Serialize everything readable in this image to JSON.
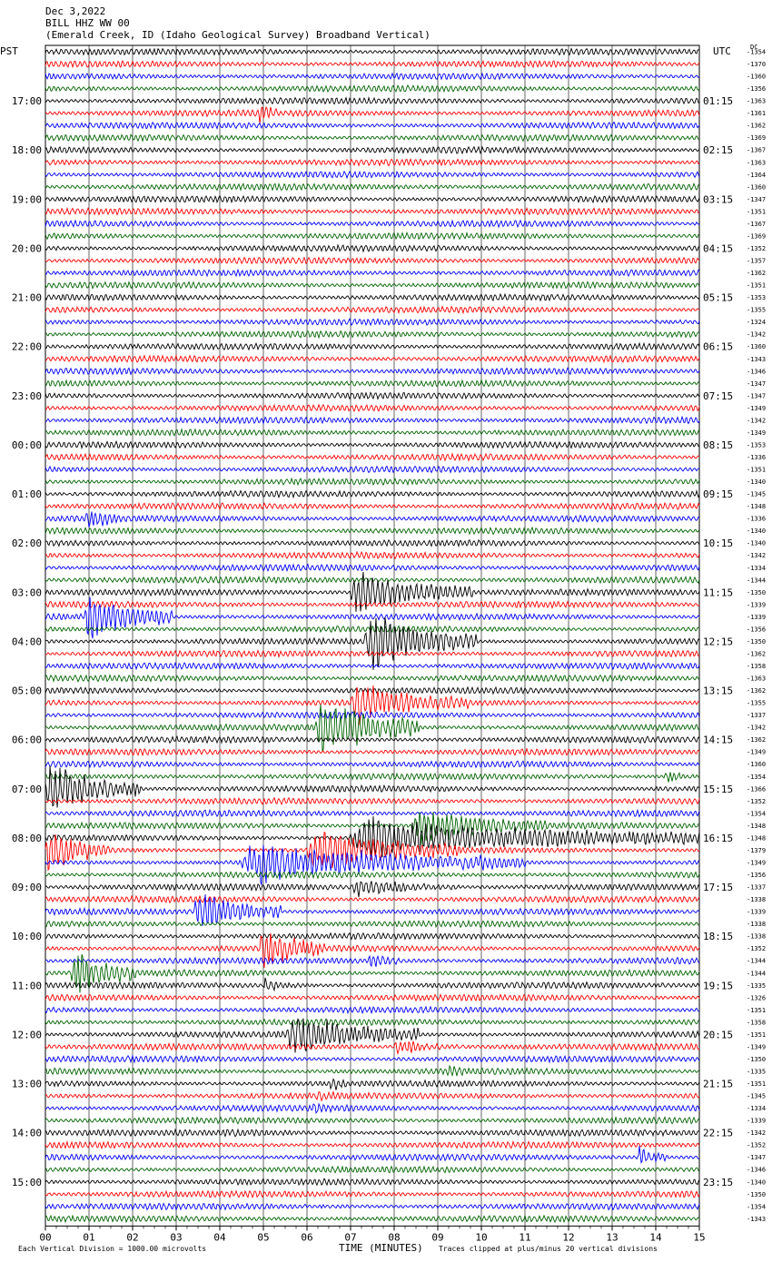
{
  "header": {
    "date": "Dec 3,2022",
    "station": "BILL HHZ WW 00",
    "location": "(Emerald Creek, ID (Idaho Geological Survey) Broadband Vertical)"
  },
  "labels": {
    "left_tz": "PST",
    "right_tz": "UTC",
    "dc": "DC"
  },
  "footer": {
    "scale": "Each Vertical Division = 1000.00 microvolts",
    "xlabel": "TIME (MINUTES)",
    "clip": "Traces clipped at plus/minus 20 vertical divisions"
  },
  "colors": {
    "cycle": [
      "#000000",
      "#ff0000",
      "#0000ff",
      "#006400"
    ],
    "grid": "#000000"
  },
  "chart_data": {
    "type": "line",
    "title": "BILL HHZ WW 00",
    "xlabel": "TIME (MINUTES)",
    "x_ticks": [
      "00",
      "01",
      "02",
      "03",
      "04",
      "05",
      "06",
      "07",
      "08",
      "09",
      "10",
      "11",
      "12",
      "13",
      "14",
      "15"
    ],
    "xlim": [
      0,
      15
    ],
    "n_traces": 96,
    "trace_minutes": 15,
    "left_hour_labels": [
      "17:00",
      "18:00",
      "19:00",
      "20:00",
      "21:00",
      "22:00",
      "23:00",
      "00:00",
      "01:00",
      "02:00",
      "03:00",
      "04:00",
      "05:00",
      "06:00",
      "07:00",
      "08:00",
      "09:00",
      "10:00",
      "11:00",
      "12:00",
      "13:00",
      "14:00",
      "15:00"
    ],
    "right_hour_labels": [
      "01:15",
      "02:15",
      "03:15",
      "04:15",
      "05:15",
      "06:15",
      "07:15",
      "08:15",
      "09:15",
      "10:15",
      "11:15",
      "12:15",
      "13:15",
      "14:15",
      "15:15",
      "16:15",
      "17:15",
      "18:15",
      "19:15",
      "20:15",
      "21:15",
      "22:15",
      "23:15"
    ],
    "dc_offsets": [
      -1354,
      -1370,
      -1360,
      -1356,
      -1363,
      -1361,
      -1362,
      -1369,
      -1367,
      -1363,
      -1364,
      -1360,
      -1347,
      -1351,
      -1367,
      -1369,
      -1352,
      -1357,
      -1362,
      -1351,
      -1353,
      -1355,
      -1324,
      -1342,
      -1360,
      -1343,
      -1346,
      -1347,
      -1347,
      -1349,
      -1342,
      -1349,
      -1353,
      -1336,
      -1351,
      -1340,
      -1345,
      -1348,
      -1336,
      -1340,
      -1340,
      -1342,
      -1334,
      -1344,
      -1350,
      -1339,
      -1339,
      -1356,
      -1350,
      -1362,
      -1358,
      -1363,
      -1362,
      -1355,
      -1337,
      -1342,
      -1362,
      -1349,
      -1360,
      -1354,
      -1366,
      -1352,
      -1354,
      -1348,
      -1348,
      -1379,
      -1349,
      -1356,
      -1337,
      -1338,
      -1339,
      -1338,
      -1338,
      -1352,
      -1344,
      -1344,
      -1335,
      -1326,
      -1351,
      -1358,
      -1351,
      -1349,
      -1350,
      -1335,
      -1351,
      -1345,
      -1334,
      -1339,
      -1342,
      -1352,
      -1347,
      -1346,
      -1340,
      -1350,
      -1354,
      -1343
    ],
    "events": [
      {
        "trace": 5,
        "t0": 4.9,
        "t1": 5.3,
        "amp": 14
      },
      {
        "trace": 8,
        "t0": 9.4,
        "t1": 9.9,
        "amp": 6
      },
      {
        "trace": 38,
        "t0": 0.9,
        "t1": 2.6,
        "amp": 10
      },
      {
        "trace": 44,
        "t0": 7.0,
        "t1": 9.8,
        "amp": 22
      },
      {
        "trace": 46,
        "t0": 0.9,
        "t1": 2.9,
        "amp": 26
      },
      {
        "trace": 48,
        "t0": 7.3,
        "t1": 9.9,
        "amp": 30
      },
      {
        "trace": 53,
        "t0": 7.0,
        "t1": 9.7,
        "amp": 22
      },
      {
        "trace": 55,
        "t0": 6.2,
        "t1": 8.6,
        "amp": 30
      },
      {
        "trace": 59,
        "t0": 14.2,
        "t1": 15.0,
        "amp": 8
      },
      {
        "trace": 60,
        "t0": 0.0,
        "t1": 2.2,
        "amp": 26
      },
      {
        "trace": 63,
        "t0": 8.4,
        "t1": 11.5,
        "amp": 20
      },
      {
        "trace": 64,
        "t0": 7.0,
        "t1": 15.0,
        "amp": 22
      },
      {
        "trace": 65,
        "t0": 0.0,
        "t1": 1.5,
        "amp": 24
      },
      {
        "trace": 65,
        "t0": 6.0,
        "t1": 9.5,
        "amp": 24
      },
      {
        "trace": 66,
        "t0": 4.5,
        "t1": 11.0,
        "amp": 22
      },
      {
        "trace": 68,
        "t0": 7.0,
        "t1": 9.5,
        "amp": 10
      },
      {
        "trace": 70,
        "t0": 3.4,
        "t1": 5.4,
        "amp": 22
      },
      {
        "trace": 73,
        "t0": 4.9,
        "t1": 6.4,
        "amp": 24
      },
      {
        "trace": 74,
        "t0": 7.4,
        "t1": 8.2,
        "amp": 10
      },
      {
        "trace": 75,
        "t0": 0.6,
        "t1": 2.1,
        "amp": 24
      },
      {
        "trace": 76,
        "t0": 5.0,
        "t1": 6.0,
        "amp": 8
      },
      {
        "trace": 80,
        "t0": 5.5,
        "t1": 8.6,
        "amp": 22
      },
      {
        "trace": 81,
        "t0": 8.0,
        "t1": 9.5,
        "amp": 9
      },
      {
        "trace": 83,
        "t0": 9.2,
        "t1": 9.7,
        "amp": 10
      },
      {
        "trace": 84,
        "t0": 6.5,
        "t1": 7.3,
        "amp": 8
      },
      {
        "trace": 85,
        "t0": 6.0,
        "t1": 11.0,
        "amp": 5
      },
      {
        "trace": 86,
        "t0": 6.0,
        "t1": 9.0,
        "amp": 5
      },
      {
        "trace": 88,
        "t0": 4.0,
        "t1": 7.5,
        "amp": 5
      },
      {
        "trace": 90,
        "t0": 13.6,
        "t1": 14.3,
        "amp": 12
      }
    ]
  }
}
